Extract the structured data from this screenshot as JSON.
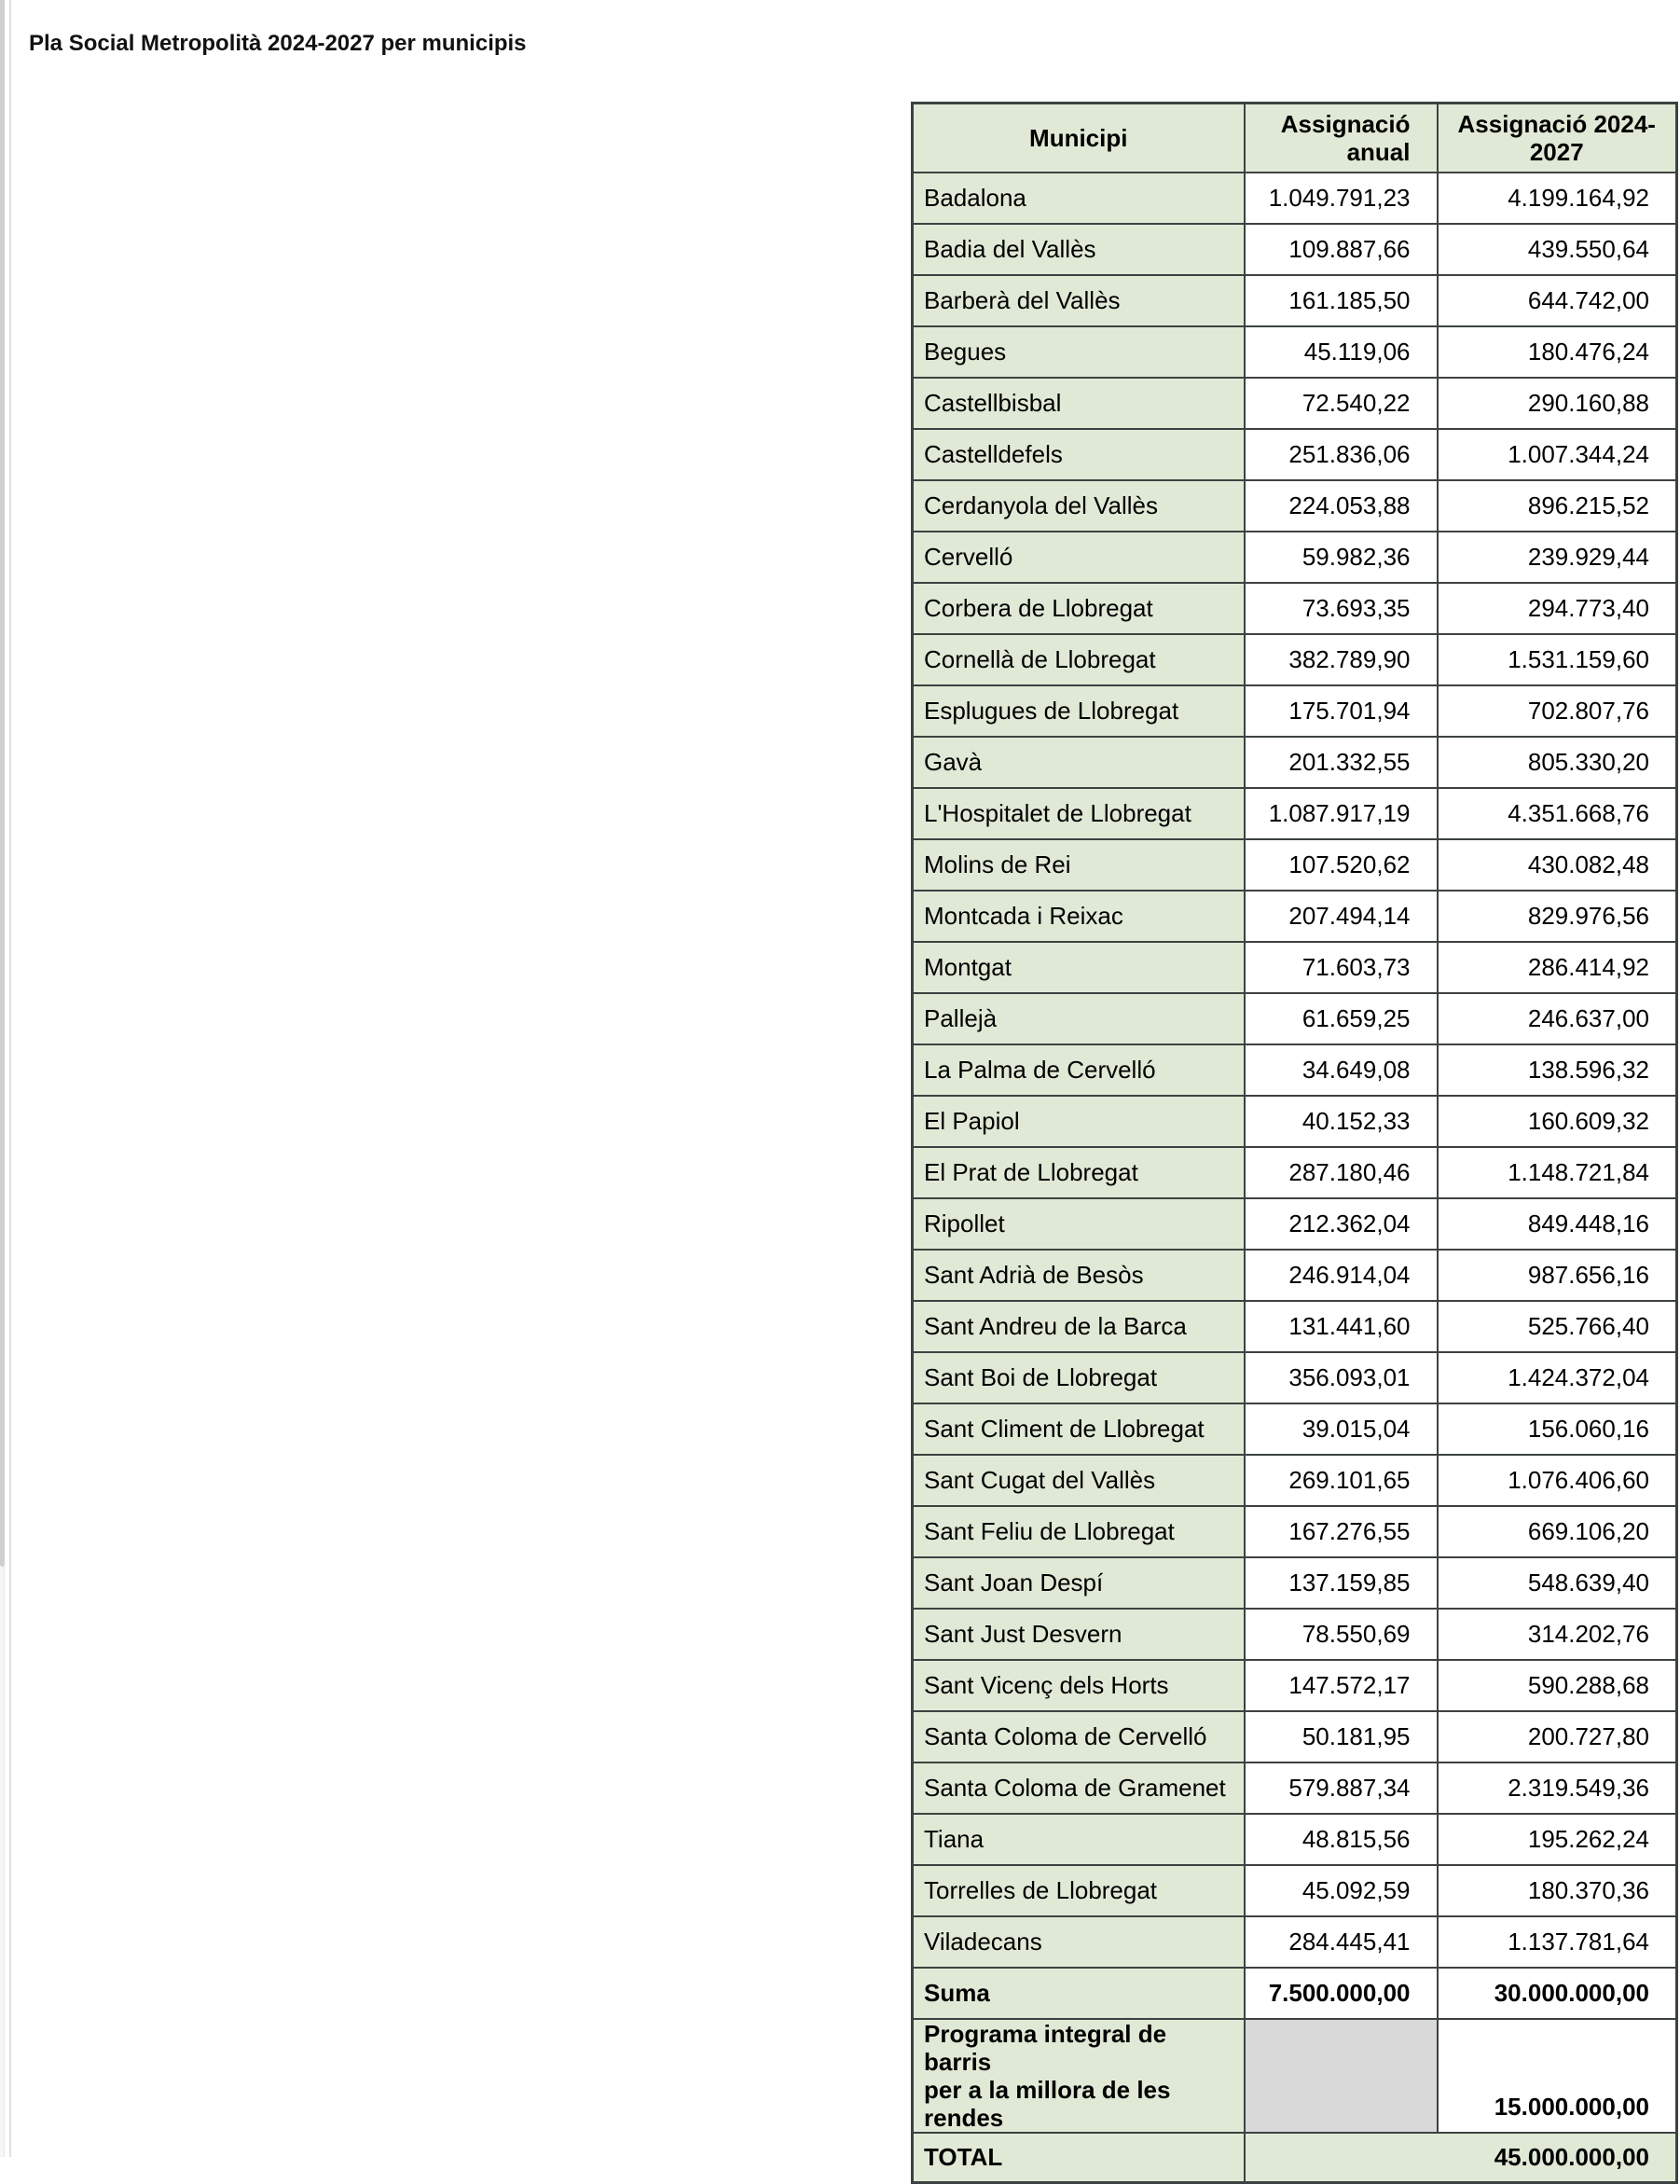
{
  "page": {
    "title": "Pla Social Metropolità 2024-2027 per municipis"
  },
  "colors": {
    "green": "#e0e9d6",
    "border": "#3d4241",
    "gray": "#d9d9d9",
    "white": "#ffffff",
    "text": "#000000"
  },
  "table": {
    "headers": {
      "municipi": "Municipi",
      "anual": "Assignació anual",
      "total": "Assignació 2024-2027"
    },
    "rows": [
      {
        "name": "Badalona",
        "anual": "1.049.791,23",
        "total": "4.199.164,92"
      },
      {
        "name": "Badia del Vallès",
        "anual": "109.887,66",
        "total": "439.550,64"
      },
      {
        "name": "Barberà del Vallès",
        "anual": "161.185,50",
        "total": "644.742,00"
      },
      {
        "name": "Begues",
        "anual": "45.119,06",
        "total": "180.476,24"
      },
      {
        "name": "Castellbisbal",
        "anual": "72.540,22",
        "total": "290.160,88"
      },
      {
        "name": "Castelldefels",
        "anual": "251.836,06",
        "total": "1.007.344,24"
      },
      {
        "name": "Cerdanyola del Vallès",
        "anual": "224.053,88",
        "total": "896.215,52"
      },
      {
        "name": "Cervelló",
        "anual": "59.982,36",
        "total": "239.929,44"
      },
      {
        "name": "Corbera de Llobregat",
        "anual": "73.693,35",
        "total": "294.773,40"
      },
      {
        "name": "Cornellà de Llobregat",
        "anual": "382.789,90",
        "total": "1.531.159,60"
      },
      {
        "name": "Esplugues de Llobregat",
        "anual": "175.701,94",
        "total": "702.807,76"
      },
      {
        "name": "Gavà",
        "anual": "201.332,55",
        "total": "805.330,20"
      },
      {
        "name": "L'Hospitalet de Llobregat",
        "anual": "1.087.917,19",
        "total": "4.351.668,76"
      },
      {
        "name": "Molins de Rei",
        "anual": "107.520,62",
        "total": "430.082,48"
      },
      {
        "name": "Montcada i Reixac",
        "anual": "207.494,14",
        "total": "829.976,56"
      },
      {
        "name": "Montgat",
        "anual": "71.603,73",
        "total": "286.414,92"
      },
      {
        "name": "Pallejà",
        "anual": "61.659,25",
        "total": "246.637,00"
      },
      {
        "name": "La Palma de Cervelló",
        "anual": "34.649,08",
        "total": "138.596,32"
      },
      {
        "name": "El Papiol",
        "anual": "40.152,33",
        "total": "160.609,32"
      },
      {
        "name": "El Prat de Llobregat",
        "anual": "287.180,46",
        "total": "1.148.721,84"
      },
      {
        "name": "Ripollet",
        "anual": "212.362,04",
        "total": "849.448,16"
      },
      {
        "name": "Sant Adrià de Besòs",
        "anual": "246.914,04",
        "total": "987.656,16"
      },
      {
        "name": "Sant Andreu de la Barca",
        "anual": "131.441,60",
        "total": "525.766,40"
      },
      {
        "name": "Sant Boi de Llobregat",
        "anual": "356.093,01",
        "total": "1.424.372,04"
      },
      {
        "name": "Sant Climent de Llobregat",
        "anual": "39.015,04",
        "total": "156.060,16"
      },
      {
        "name": "Sant Cugat del Vallès",
        "anual": "269.101,65",
        "total": "1.076.406,60"
      },
      {
        "name": "Sant Feliu de Llobregat",
        "anual": "167.276,55",
        "total": "669.106,20"
      },
      {
        "name": "Sant Joan Despí",
        "anual": "137.159,85",
        "total": "548.639,40"
      },
      {
        "name": "Sant Just Desvern",
        "anual": "78.550,69",
        "total": "314.202,76"
      },
      {
        "name": "Sant Vicenç dels Horts",
        "anual": "147.572,17",
        "total": "590.288,68"
      },
      {
        "name": "Santa Coloma de Cervelló",
        "anual": "50.181,95",
        "total": "200.727,80"
      },
      {
        "name": "Santa Coloma de Gramenet",
        "anual": "579.887,34",
        "total": "2.319.549,36"
      },
      {
        "name": "Tiana",
        "anual": "48.815,56",
        "total": "195.262,24"
      },
      {
        "name": "Torrelles de Llobregat",
        "anual": "45.092,59",
        "total": "180.370,36"
      },
      {
        "name": "Viladecans",
        "anual": "284.445,41",
        "total": "1.137.781,64"
      }
    ],
    "suma": {
      "label": "Suma",
      "anual": "7.500.000,00",
      "total": "30.000.000,00"
    },
    "programa": {
      "label_line1": "Programa integral de barris",
      "label_line2": "per a la millora de les rendes",
      "total": "15.000.000,00"
    },
    "total": {
      "label": "TOTAL",
      "value": "45.000.000,00"
    }
  }
}
